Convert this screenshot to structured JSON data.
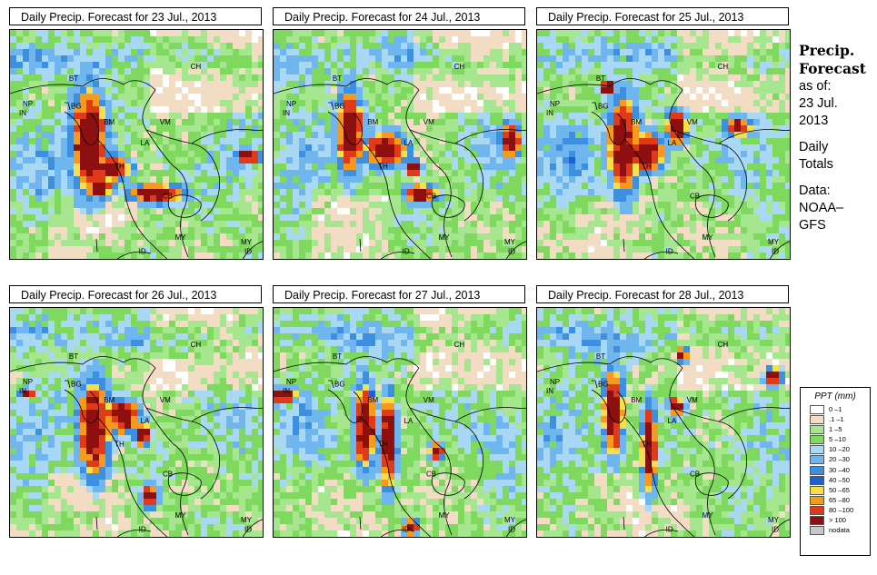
{
  "panels": [
    {
      "title": "Daily Precip. Forecast for  23 Jul., 2013"
    },
    {
      "title": "Daily Precip. Forecast for  24 Jul., 2013"
    },
    {
      "title": "Daily Precip. Forecast for  25 Jul., 2013"
    },
    {
      "title": "Daily Precip. Forecast for  26 Jul., 2013"
    },
    {
      "title": "Daily Precip. Forecast for  27 Jul., 2013"
    },
    {
      "title": "Daily Precip. Forecast for  28 Jul., 2013"
    }
  ],
  "country_labels": [
    "NP",
    "BT",
    "BG",
    "IN",
    "BM",
    "CH",
    "VM",
    "LA",
    "TH",
    "CB",
    "MY",
    "ID"
  ],
  "side": {
    "title_line1": "Precip.",
    "title_line2": "Forecast",
    "asof_line1": "as of:",
    "asof_line2": "23 Jul.",
    "asof_line3": "2013",
    "totals_line1": "Daily",
    "totals_line2": "Totals",
    "data_line1": "Data:",
    "data_line2": "NOAA–",
    "data_line3": "GFS"
  },
  "legend": {
    "title": "PPT (mm)",
    "items": [
      {
        "label": "0 –1",
        "color": "#ffffff"
      },
      {
        "label": ".1 –1",
        "color": "#f2dcc4"
      },
      {
        "label": "1 –5",
        "color": "#a6e68e"
      },
      {
        "label": "5 –10",
        "color": "#7fd95e"
      },
      {
        "label": "10 –20",
        "color": "#a9d8f5"
      },
      {
        "label": "20 –30",
        "color": "#6fb6ee"
      },
      {
        "label": "30 –40",
        "color": "#3d8fe0"
      },
      {
        "label": "40 –50",
        "color": "#1f5fd0"
      },
      {
        "label": "50 –65",
        "color": "#f5df4d"
      },
      {
        "label": "65 –80",
        "color": "#f59a1e"
      },
      {
        "label": "80 –100",
        "color": "#e03a18"
      },
      {
        "label": "> 100",
        "color": "#8e0f0f"
      },
      {
        "label": "nodata",
        "color": "#c8c8c8"
      }
    ]
  }
}
